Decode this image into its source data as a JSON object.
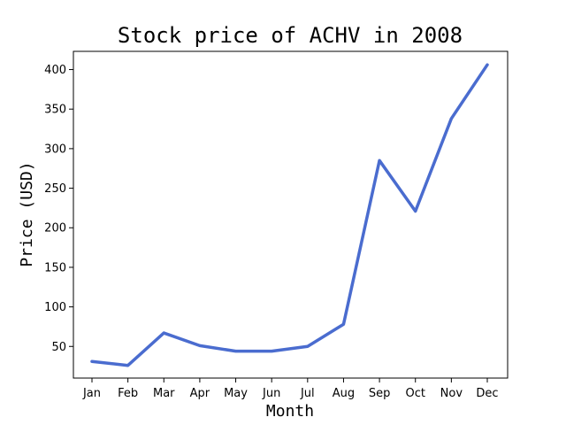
{
  "chart_data": {
    "type": "line",
    "title": "Stock price of ACHV in 2008",
    "xlabel": "Month",
    "ylabel": "Price (USD)",
    "categories": [
      "Jan",
      "Feb",
      "Mar",
      "Apr",
      "May",
      "Jun",
      "Jul",
      "Aug",
      "Sep",
      "Oct",
      "Nov",
      "Dec"
    ],
    "series": [
      {
        "color": "#4a6ccf",
        "values": [
          31,
          26,
          67,
          51,
          44,
          44,
          50,
          78,
          285,
          221,
          338,
          406
        ]
      }
    ],
    "yticks": [
      50,
      100,
      150,
      200,
      250,
      300,
      350,
      400
    ],
    "ylim": [
      10,
      423
    ],
    "grid": false,
    "legend": "none"
  }
}
